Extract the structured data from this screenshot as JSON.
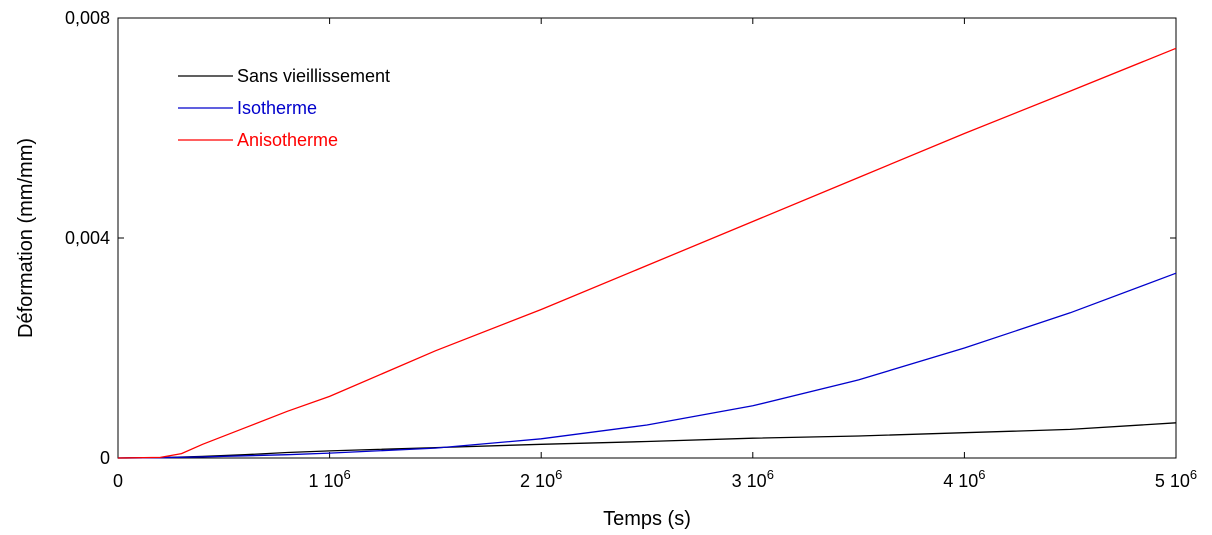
{
  "chart_data": {
    "type": "line",
    "title": "",
    "xlabel": "Temps (s)",
    "ylabel": "Déformation (mm/mm)",
    "xlim": [
      0,
      5000000
    ],
    "ylim": [
      0,
      0.008
    ],
    "x_ticks": [
      {
        "value": 0,
        "label": "0",
        "exp": ""
      },
      {
        "value": 1000000,
        "label": "1 10",
        "exp": "6"
      },
      {
        "value": 2000000,
        "label": "2 10",
        "exp": "6"
      },
      {
        "value": 3000000,
        "label": "3 10",
        "exp": "6"
      },
      {
        "value": 4000000,
        "label": "4 10",
        "exp": "6"
      },
      {
        "value": 5000000,
        "label": "5 10",
        "exp": "6"
      }
    ],
    "y_ticks": [
      {
        "value": 0,
        "label": "0"
      },
      {
        "value": 0.004,
        "label": "0,004"
      },
      {
        "value": 0.008,
        "label": "0,008"
      }
    ],
    "grid": false,
    "legend_position": "top-left",
    "series": [
      {
        "name": "Sans vieillissement",
        "color": "#000000",
        "x": [
          0,
          200000,
          400000,
          600000,
          800000,
          1000000,
          1500000,
          2000000,
          2500000,
          3000000,
          3500000,
          4000000,
          4500000,
          5000000
        ],
        "y": [
          0,
          5e-06,
          3e-05,
          6e-05,
          0.0001,
          0.00013,
          0.00019,
          0.00025,
          0.0003,
          0.00036,
          0.0004,
          0.00046,
          0.00052,
          0.00064
        ]
      },
      {
        "name": "Isotherme",
        "color": "#0000cc",
        "x": [
          0,
          200000,
          400000,
          600000,
          800000,
          1000000,
          1500000,
          2000000,
          2500000,
          3000000,
          3500000,
          4000000,
          4500000,
          5000000
        ],
        "y": [
          0,
          5e-06,
          2e-05,
          4e-05,
          6e-05,
          9e-05,
          0.00018,
          0.00035,
          0.0006,
          0.00095,
          0.00142,
          0.002,
          0.00264,
          0.00336
        ]
      },
      {
        "name": "Anisotherme",
        "color": "#ff0000",
        "x": [
          0,
          200000,
          300000,
          400000,
          600000,
          800000,
          1000000,
          1500000,
          2000000,
          2500000,
          3000000,
          3500000,
          4000000,
          4500000,
          5000000
        ],
        "y": [
          0,
          1e-05,
          8e-05,
          0.00025,
          0.00055,
          0.00085,
          0.00112,
          0.00195,
          0.0027,
          0.0035,
          0.0043,
          0.0051,
          0.0059,
          0.00667,
          0.00745
        ]
      }
    ]
  }
}
